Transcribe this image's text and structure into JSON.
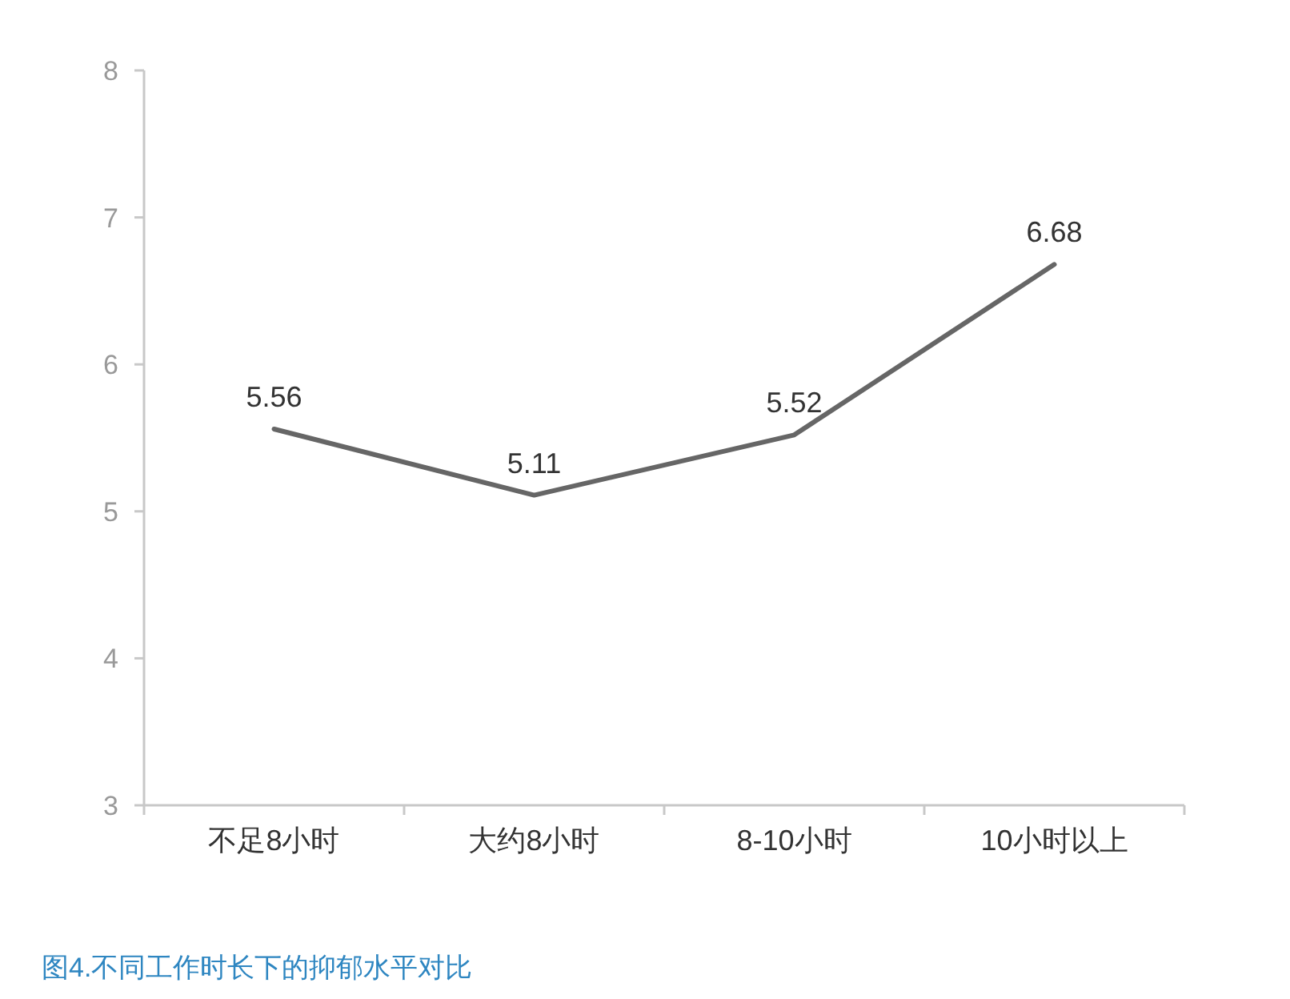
{
  "chart_data": {
    "type": "line",
    "title": "图4.不同工作时长下的抑郁水平对比",
    "categories": [
      "不足8小时",
      "大约8小时",
      "8-10小时",
      "10小时以上"
    ],
    "values": [
      5.56,
      5.11,
      5.52,
      6.68
    ],
    "color": "#666666",
    "ylim": [
      3,
      8
    ],
    "yticks": [
      3,
      4,
      5,
      6,
      7,
      8
    ],
    "grid": false,
    "data_labels": true,
    "marker": "none",
    "line_style": "solid"
  }
}
